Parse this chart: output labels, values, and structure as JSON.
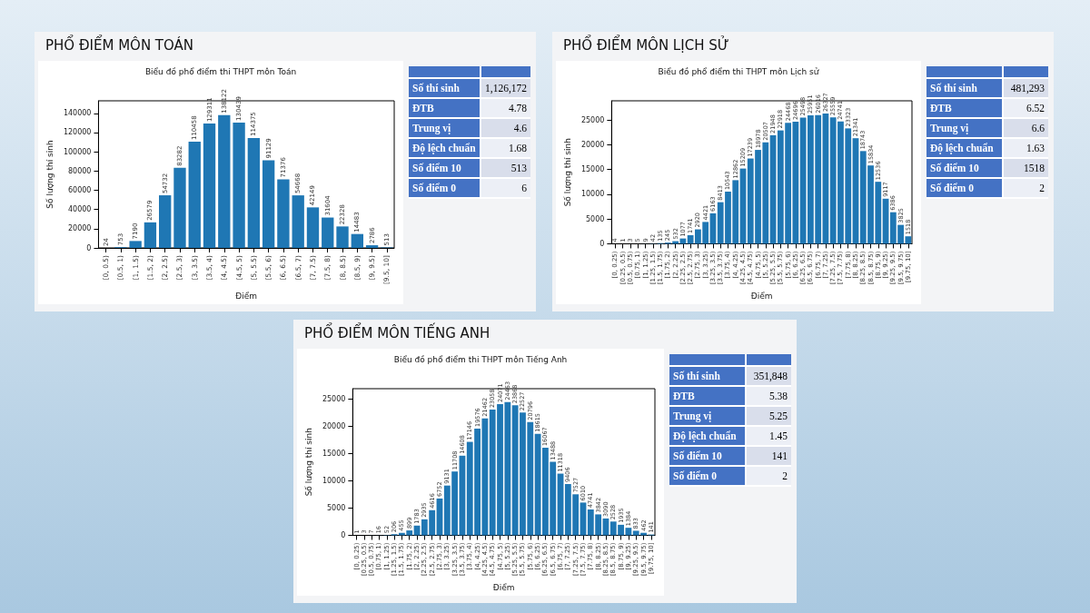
{
  "chart_data": [
    {
      "type": "bar",
      "title": "PHỔ ĐIỂM MÔN TOÁN",
      "subtitle": "Biểu đồ phổ điểm thi THPT môn Toán",
      "xlabel": "Điểm",
      "ylabel": "Số lượng thí sinh",
      "categories": [
        "[0, 0.5)",
        "[0.5, 1)",
        "[1, 1.5)",
        "[1.5, 2)",
        "[2, 2.5)",
        "[2.5, 3)",
        "[3, 3.5)",
        "[3.5, 4)",
        "[4, 4.5)",
        "[4.5, 5)",
        "[5, 5.5)",
        "[5.5, 6)",
        "[6, 6.5)",
        "[6.5, 7)",
        "[7, 7.5)",
        "[7.5, 8)",
        "[8, 8.5)",
        "[8.5, 9)",
        "[9, 9.5)",
        "[9.5, 10]"
      ],
      "values": [
        24,
        753,
        7190,
        26579,
        54732,
        83282,
        110458,
        129311,
        138122,
        130439,
        114375,
        91129,
        71376,
        54668,
        42149,
        31604,
        22328,
        14483,
        2786,
        513
      ],
      "color": "#1f77b4",
      "ylim": [
        0,
        153000
      ],
      "yticks": [
        0,
        20000,
        40000,
        60000,
        80000,
        100000,
        120000,
        140000
      ],
      "grid": false,
      "data_labels": true
    },
    {
      "type": "other",
      "categories": [
        "Số thí sinh",
        "ĐTB",
        "Trung vị",
        "Độ lệch chuẩn",
        "Số điểm 10",
        "Số điểm 0"
      ],
      "values": [
        1126172,
        4.78,
        4.6,
        1.68,
        513,
        6
      ],
      "value_labels": [
        "1,126,172",
        "4.78",
        "4.6",
        "1.68",
        "513",
        "6"
      ]
    },
    {
      "type": "bar",
      "title": "PHỔ ĐIỂM MÔN LỊCH SỬ",
      "subtitle": "Biểu đồ phổ điểm thi THPT môn Lịch sử",
      "xlabel": "Điểm",
      "ylabel": "Số lượng thí sinh",
      "categories": [
        "[0, 0.25)",
        "[0.25, 0.5)",
        "[0.5, 0.75)",
        "[0.75, 1)",
        "[1, 1.25)",
        "[1.25, 1.5)",
        "[1.5, 1.75)",
        "[1.75, 2)",
        "[2, 2.25)",
        "[2.25, 2.5)",
        "[2.5, 2.75)",
        "[2.75, 3)",
        "[3, 3.25)",
        "[3.25, 3.5)",
        "[3.5, 3.75)",
        "[3.75, 4)",
        "[4, 4.25)",
        "[4.25, 4.5)",
        "[4.5, 4.75)",
        "[4.75, 5)",
        "[5, 5.25)",
        "[5.25, 5.5)",
        "[5.5, 5.75)",
        "[5.75, 6)",
        "[6, 6.25)",
        "[6.25, 6.5)",
        "[6.5, 6.75)",
        "[6.75, 7)",
        "[7, 7.25)",
        "[7.25, 7.5)",
        "[7.5, 7.75)",
        "[7.75, 8)",
        "[8, 8.25)",
        "[8.25, 8.5)",
        "[8.5, 8.75)",
        "[8.75, 9)",
        "[9, 9.25)",
        "[9.25, 9.5)",
        "[9.5, 9.75)",
        "[9.75, 10]"
      ],
      "values": [
        4,
        1,
        3,
        5,
        9,
        42,
        135,
        245,
        532,
        1077,
        1741,
        2920,
        4421,
        6163,
        8413,
        10543,
        12862,
        15209,
        17239,
        18978,
        20507,
        21948,
        22918,
        24468,
        24696,
        25498,
        25951,
        26016,
        26327,
        25559,
        24741,
        23323,
        21341,
        18743,
        15834,
        12536,
        9117,
        6386,
        3825,
        1518
      ],
      "color": "#1f77b4",
      "ylim": [
        0,
        28900
      ],
      "yticks": [
        0,
        5000,
        10000,
        15000,
        20000,
        25000
      ],
      "grid": false,
      "data_labels": true
    },
    {
      "type": "other",
      "categories": [
        "Số thí sinh",
        "ĐTB",
        "Trung vị",
        "Độ lệch chuẩn",
        "Số điểm 10",
        "Số điểm 0"
      ],
      "values": [
        481293,
        6.52,
        6.6,
        1.63,
        1518,
        2
      ],
      "value_labels": [
        "481,293",
        "6.52",
        "6.6",
        "1.63",
        "1518",
        "2"
      ]
    },
    {
      "type": "bar",
      "title": "PHỔ ĐIỂM MÔN TIẾNG ANH",
      "subtitle": "Biểu đồ phổ điểm thi THPT môn Tiếng Anh",
      "xlabel": "Điểm",
      "ylabel": "Số lượng thí sinh",
      "categories": [
        "[0, 0.25)",
        "[0.25, 0.5)",
        "[0.5, 0.75)",
        "[0.75, 1)",
        "[1, 1.25)",
        "[1.25, 1.5)",
        "[1.5, 1.75)",
        "[1.75, 2)",
        "[2, 2.25)",
        "[2.25, 2.5)",
        "[2.5, 2.75)",
        "[2.75, 3)",
        "[3, 3.25)",
        "[3.25, 3.5)",
        "[3.5, 3.75)",
        "[3.75, 4)",
        "[4, 4.25)",
        "[4.25, 4.5)",
        "[4.5, 4.75)",
        "[4.75, 5)",
        "[5, 5.25)",
        "[5.25, 5.5)",
        "[5.5, 5.75)",
        "[5.75, 6)",
        "[6, 6.25)",
        "[6.25, 6.5)",
        "[6.5, 6.75)",
        "[6.75, 7)",
        "[7, 7.25)",
        "[7.25, 7.5)",
        "[7.5, 7.75)",
        "[7.75, 8)",
        "[8, 8.25)",
        "[8.25, 8.5)",
        "[8.5, 8.75)",
        "[8.75, 9)",
        "[9, 9.25)",
        "[9.25, 9.5)",
        "[9.5, 9.75)",
        "[9.75, 10]"
      ],
      "values": [
        1,
        3,
        7,
        16,
        52,
        206,
        455,
        899,
        1783,
        2935,
        4616,
        6752,
        9131,
        11708,
        14608,
        17146,
        19576,
        21462,
        23058,
        24071,
        24463,
        23868,
        22527,
        20796,
        18615,
        16067,
        13488,
        11318,
        9406,
        7527,
        6010,
        4741,
        3842,
        3090,
        2528,
        1935,
        1384,
        833,
        462,
        141
      ],
      "color": "#1f77b4",
      "ylim": [
        0,
        26900
      ],
      "yticks": [
        0,
        5000,
        10000,
        15000,
        20000,
        25000
      ],
      "grid": false,
      "data_labels": true
    },
    {
      "type": "other",
      "categories": [
        "Số thí sinh",
        "ĐTB",
        "Trung vị",
        "Độ lệch chuẩn",
        "Số điểm 10",
        "Số điểm 0"
      ],
      "values": [
        351848,
        5.38,
        5.25,
        1.45,
        141,
        2
      ],
      "value_labels": [
        "351,848",
        "5.38",
        "5.25",
        "1.45",
        "141",
        "2"
      ]
    }
  ]
}
